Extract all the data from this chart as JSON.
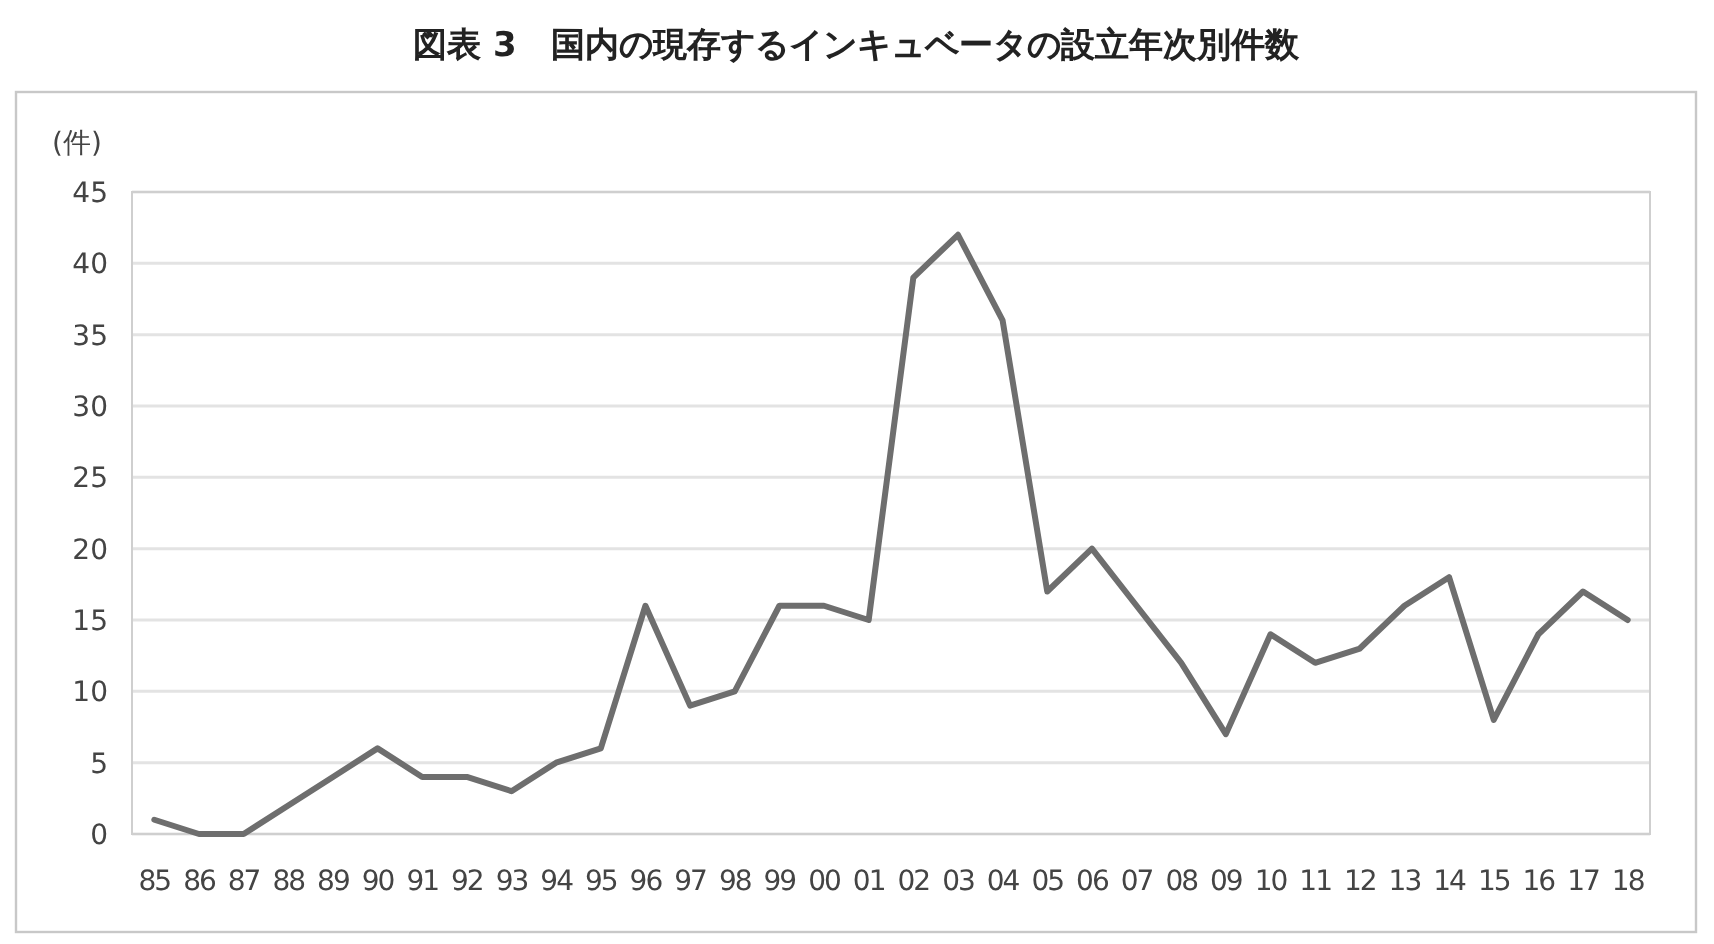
{
  "chart_data": {
    "type": "line",
    "title": "図表 3　国内の現存するインキュベータの設立年次別件数",
    "ylabel": "(件)",
    "categories": [
      "85",
      "86",
      "87",
      "88",
      "89",
      "90",
      "91",
      "92",
      "93",
      "94",
      "95",
      "96",
      "97",
      "98",
      "99",
      "00",
      "01",
      "02",
      "03",
      "04",
      "05",
      "06",
      "07",
      "08",
      "09",
      "10",
      "11",
      "12",
      "13",
      "14",
      "15",
      "16",
      "17",
      "18"
    ],
    "series": [
      {
        "color": "#6e6e6e",
        "values": [
          1,
          0,
          0,
          2,
          4,
          6,
          4,
          4,
          3,
          5,
          6,
          16,
          9,
          10,
          16,
          16,
          15,
          39,
          42,
          36,
          17,
          20,
          16,
          12,
          7,
          14,
          12,
          13,
          16,
          18,
          8,
          14,
          17,
          15
        ]
      }
    ],
    "ylim": [
      0,
      45
    ],
    "yticks": [
      0,
      5,
      10,
      15,
      20,
      25,
      30,
      35,
      40,
      45
    ],
    "grid": "y",
    "marker": "none",
    "line_style": "solid"
  }
}
